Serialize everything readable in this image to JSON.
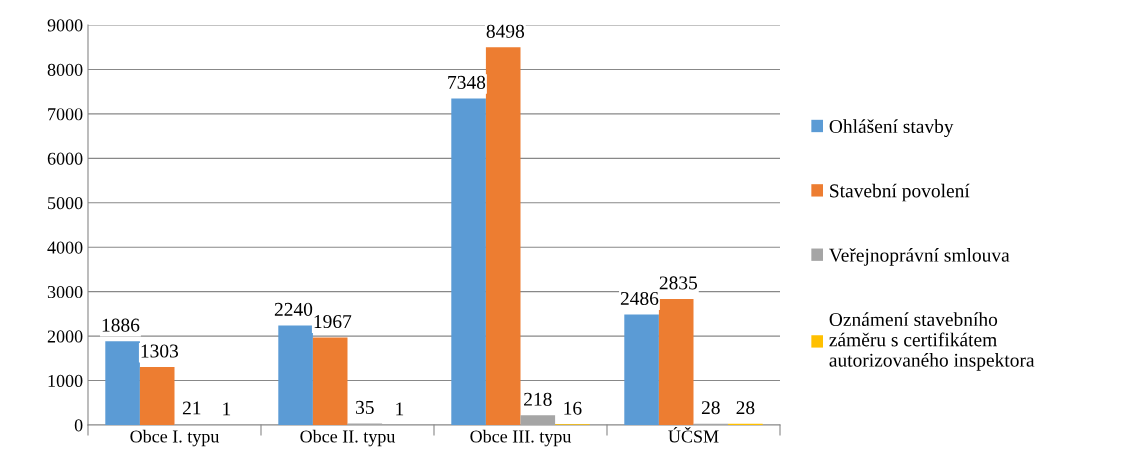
{
  "chart_data": {
    "type": "bar",
    "categories": [
      "Obce I. typu",
      "Obce II. typu",
      "Obce III. typu",
      "ÚČSM"
    ],
    "series": [
      {
        "name": "Ohlášení stavby",
        "color": "#5b9bd5",
        "values": [
          1886,
          2240,
          7348,
          2486
        ]
      },
      {
        "name": "Stavební povolení",
        "color": "#ed7d31",
        "values": [
          1303,
          1967,
          8498,
          2835
        ]
      },
      {
        "name": "Veřejnoprávní smlouva",
        "color": "#a5a5a5",
        "values": [
          21,
          35,
          218,
          28
        ]
      },
      {
        "name": "Oznámení stavebního\nzáměru s certifikátem\nautorizovaného inspektora",
        "color": "#ffc000",
        "values": [
          1,
          1,
          16,
          28
        ]
      }
    ],
    "ylim": [
      0,
      9000
    ],
    "yticks": [
      0,
      1000,
      2000,
      3000,
      4000,
      5000,
      6000,
      7000,
      8000,
      9000
    ],
    "grid": "y",
    "legend": "right",
    "data_labels": true
  }
}
